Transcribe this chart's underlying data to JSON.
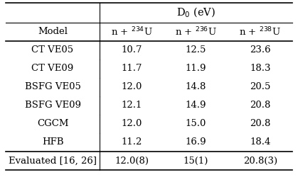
{
  "title": "D$_0$ (eV)",
  "col_headers": [
    "Model",
    "n + $^{234}$U",
    "n + $^{236}$U",
    "n + $^{238}$U"
  ],
  "rows": [
    [
      "CT VE05",
      "10.7",
      "12.5",
      "23.6"
    ],
    [
      "CT VE09",
      "11.7",
      "11.9",
      "18.3"
    ],
    [
      "BSFG VE05",
      "12.0",
      "14.8",
      "20.5"
    ],
    [
      "BSFG VE09",
      "12.1",
      "14.9",
      "20.8"
    ],
    [
      "CGCM",
      "12.0",
      "15.0",
      "20.8"
    ],
    [
      "HFB",
      "11.2",
      "16.9",
      "18.4"
    ]
  ],
  "footer_row": [
    "Evaluated [16, 26]",
    "12.0(8)",
    "15(1)",
    "20.8(3)"
  ],
  "background_color": "#ffffff",
  "text_color": "#000000",
  "font_size": 9.5
}
